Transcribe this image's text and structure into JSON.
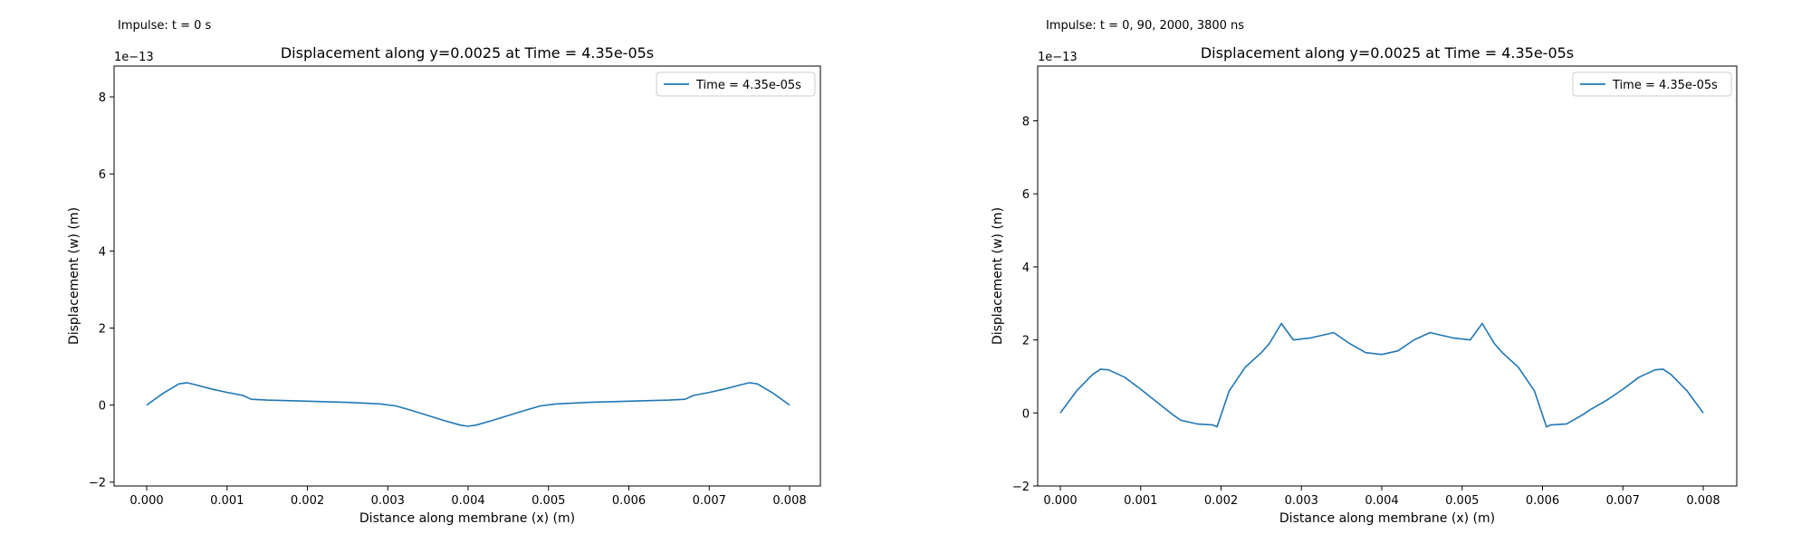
{
  "panels": [
    {
      "impulse_label": "Impulse: t = 0 s",
      "chart_data": {
        "type": "line",
        "title": "Displacement along y=0.0025 at Time = 4.35e-05s",
        "xlabel": "Distance along membrane (x) (m)",
        "ylabel": "Displacement (w) (m)",
        "offset_text": "1e−13",
        "xlim": [
          -0.0004,
          0.0004
        ],
        "ylim": [
          -2.1,
          8.8
        ],
        "xticks": [
          0.0,
          0.001,
          0.002,
          0.003,
          0.004,
          0.005,
          0.006,
          0.007,
          0.008
        ],
        "xtick_labels": [
          "0.000",
          "0.001",
          "0.002",
          "0.003",
          "0.004",
          "0.005",
          "0.006",
          "0.007",
          "0.008"
        ],
        "yticks": [
          -2,
          0,
          2,
          4,
          6,
          8
        ],
        "ytick_labels": [
          "−2",
          "0",
          "2",
          "4",
          "6",
          "8"
        ],
        "legend_position": "upper-right",
        "grid": false,
        "color": "#1f77b4",
        "series": [
          {
            "name": "Time = 4.35e-05s",
            "x": [
              0.0,
              0.0002,
              0.0004,
              0.0005,
              0.0006,
              0.0008,
              0.001,
              0.0012,
              0.0013,
              0.0015,
              0.002,
              0.0025,
              0.0029,
              0.0031,
              0.0033,
              0.0035,
              0.0037,
              0.0039,
              0.004,
              0.0041,
              0.0043,
              0.0045,
              0.0047,
              0.0049,
              0.0051,
              0.0055,
              0.006,
              0.0065,
              0.0067,
              0.0068,
              0.007,
              0.0072,
              0.0074,
              0.0075,
              0.0076,
              0.0078,
              0.008
            ],
            "y": [
              0.0,
              0.3,
              0.55,
              0.58,
              0.53,
              0.42,
              0.33,
              0.25,
              0.15,
              0.13,
              0.1,
              0.07,
              0.03,
              -0.02,
              -0.14,
              -0.27,
              -0.4,
              -0.52,
              -0.55,
              -0.52,
              -0.4,
              -0.27,
              -0.14,
              -0.02,
              0.03,
              0.07,
              0.1,
              0.13,
              0.15,
              0.25,
              0.33,
              0.42,
              0.53,
              0.58,
              0.55,
              0.3,
              0.0
            ]
          }
        ]
      }
    },
    {
      "impulse_label": "Impulse: t = 0, 90, 2000, 3800 ns",
      "chart_data": {
        "type": "line",
        "title": "Displacement along y=0.0025 at Time = 4.35e-05s",
        "xlabel": "Distance along membrane (x) (m)",
        "ylabel": "Displacement (w) (m)",
        "offset_text": "1e−13",
        "xlim": [
          -0.0004,
          0.0004
        ],
        "ylim": [
          -2.0,
          9.5
        ],
        "xticks": [
          0.0,
          0.001,
          0.002,
          0.003,
          0.004,
          0.005,
          0.006,
          0.007,
          0.008
        ],
        "xtick_labels": [
          "0.000",
          "0.001",
          "0.002",
          "0.003",
          "0.004",
          "0.005",
          "0.006",
          "0.007",
          "0.008"
        ],
        "yticks": [
          -2,
          0,
          2,
          4,
          6,
          8
        ],
        "ytick_labels": [
          "−2",
          "0",
          "2",
          "4",
          "6",
          "8"
        ],
        "legend_position": "upper-right",
        "grid": false,
        "color": "#1f77b4",
        "series": [
          {
            "name": "Time = 4.35e-05s",
            "x": [
              0.0,
              0.0002,
              0.0004,
              0.0005,
              0.0006,
              0.0008,
              0.001,
              0.0012,
              0.0014,
              0.0015,
              0.0017,
              0.0019,
              0.00195,
              0.0021,
              0.0023,
              0.0025,
              0.0026,
              0.00275,
              0.0029,
              0.0031,
              0.0033,
              0.0034,
              0.0036,
              0.0038,
              0.004,
              0.0042,
              0.0044,
              0.0046,
              0.0047,
              0.0049,
              0.0051,
              0.00525,
              0.0054,
              0.0055,
              0.0057,
              0.0059,
              0.00605,
              0.0061,
              0.0063,
              0.0065,
              0.0066,
              0.0068,
              0.007,
              0.0072,
              0.0074,
              0.0075,
              0.0076,
              0.0078,
              0.008
            ],
            "y": [
              0.0,
              0.6,
              1.05,
              1.2,
              1.18,
              0.98,
              0.65,
              0.3,
              -0.05,
              -0.2,
              -0.3,
              -0.33,
              -0.38,
              0.6,
              1.25,
              1.65,
              1.9,
              2.45,
              2.0,
              2.05,
              2.15,
              2.2,
              1.9,
              1.65,
              1.6,
              1.7,
              2.0,
              2.2,
              2.15,
              2.05,
              2.0,
              2.45,
              1.9,
              1.65,
              1.25,
              0.6,
              -0.38,
              -0.33,
              -0.3,
              -0.05,
              0.1,
              0.35,
              0.65,
              0.98,
              1.18,
              1.2,
              1.05,
              0.6,
              0.0
            ]
          }
        ]
      }
    }
  ]
}
